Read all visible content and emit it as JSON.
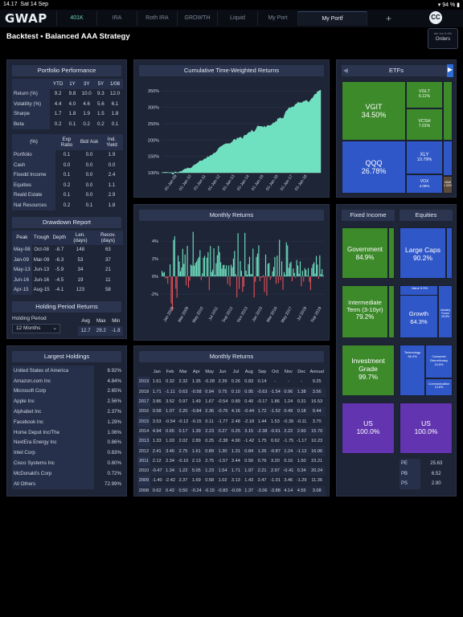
{
  "status": {
    "time": "14.17",
    "date": "Sat 14 Sep",
    "battery": "94 %"
  },
  "app": {
    "logo": "GWAP",
    "avatar": "CC"
  },
  "tabs": [
    {
      "label": "401K"
    },
    {
      "label": "IRA"
    },
    {
      "label": "Roth IRA"
    },
    {
      "label": "GROWTH"
    },
    {
      "label": "Liquid"
    },
    {
      "label": "My Port"
    },
    {
      "label": "My Portf"
    },
    {
      "label": "+"
    }
  ],
  "header": {
    "title": "Backtest  •  Balanced AAA Strategy",
    "orders_small": "etc\n1m\n0.4%",
    "orders_label": "Orders"
  },
  "perf": {
    "title": "Portfolio Performance",
    "cols": [
      "YTD",
      "1Y",
      "3Y",
      "5Y",
      "1/08"
    ],
    "rows": [
      {
        "label": "Return (%)",
        "v": [
          "9.2",
          "9.8",
          "10.0",
          "9.3",
          "12.0"
        ]
      },
      {
        "label": "Volatility (%)",
        "v": [
          "4.4",
          "4.0",
          "4.6",
          "5.6",
          "6.1"
        ]
      },
      {
        "label": "Sharpe",
        "v": [
          "1.7",
          "1.8",
          "1.9",
          "1.5",
          "1.8"
        ]
      },
      {
        "label": "Beta",
        "v": [
          "0.2",
          "0.1",
          "0.2",
          "0.2",
          "0.1"
        ]
      }
    ]
  },
  "alloc": {
    "cols": [
      "(%)",
      "Exp Ratio",
      "Bid/ Ask",
      "Ind. Yield"
    ],
    "rows": [
      {
        "label": "Portfolio",
        "v": [
          "0.1",
          "0.0",
          "1.9"
        ]
      },
      {
        "label": "Cash",
        "v": [
          "0.0",
          "0.0",
          "0.0"
        ]
      },
      {
        "label": "Fixedd Income",
        "v": [
          "0.1",
          "0.0",
          "2.4"
        ]
      },
      {
        "label": "Equities",
        "v": [
          "0.2",
          "0.0",
          "1.1"
        ]
      },
      {
        "label": "Reald Estate",
        "v": [
          "0.1",
          "0.0",
          "2.9"
        ]
      },
      {
        "label": "Nat Resources",
        "v": [
          "0.2",
          "0.1",
          "1.8"
        ]
      }
    ]
  },
  "drawdown": {
    "title": "Drawdown Report",
    "cols": [
      "Peak",
      "Trough",
      "Depth",
      "Len. (days)",
      "Recov. (days)"
    ],
    "rows": [
      [
        "May-08",
        "Oct-08",
        "-8.7",
        "148",
        "63"
      ],
      [
        "Jan-09",
        "Mar-09",
        "-6.3",
        "53",
        "37"
      ],
      [
        "May-13",
        "Jun-13",
        "-5.9",
        "34",
        "21"
      ],
      [
        "Jun-16",
        "Jun-16",
        "-4.5",
        "19",
        "11"
      ],
      [
        "Apr-15",
        "Aug-15",
        "-4.1",
        "123",
        "58"
      ]
    ]
  },
  "holding": {
    "title": "Holding Period Returns",
    "label": "Holding Period",
    "select": "12 Months",
    "cols": [
      "Avg",
      "Max",
      "Min"
    ],
    "vals": [
      "12.7",
      "29.2",
      "-1.8"
    ]
  },
  "largest": {
    "title": "Largest Holdings",
    "rows": [
      [
        "United States of America",
        "8.92%"
      ],
      [
        "Amazon.com Inc",
        "4.84%"
      ],
      [
        "Microsoft Corp",
        "2.65%"
      ],
      [
        "Apple Inc",
        "2.56%"
      ],
      [
        "Alphabet Inc",
        "2.37%"
      ],
      [
        "Facebook Inc",
        "1.29%"
      ],
      [
        "Home Depot Inc/The",
        "1.06%"
      ],
      [
        "NextEra Energy Inc",
        "0.86%"
      ],
      [
        "Intel Corp",
        "0.83%"
      ],
      [
        "Cisco Systems Inc",
        "0.80%"
      ],
      [
        "McDonald's Corp",
        "0.72%"
      ],
      [
        "All Others",
        "72.99%"
      ]
    ]
  },
  "cum": {
    "title": "Cumulative Time-Weighted Returns",
    "yticks": [
      "350%",
      "300%",
      "250%",
      "200%",
      "150%",
      "100%"
    ],
    "xticks": [
      "01-Jan-09",
      "01-Jan-10",
      "01-Jan-11",
      "01-Jan-12",
      "01-Jan-13",
      "01-Jan-14",
      "01-Jan-15",
      "01-Jan-16",
      "01-Jan-17",
      "01-Jan-18"
    ]
  },
  "monthlyChart": {
    "title": "Monthly Returns",
    "yticks": [
      "4%",
      "2%",
      "0%",
      "-2%"
    ],
    "xticks": [
      "Jan 2008",
      "Mar 2009",
      "May 2010",
      "Jul 2011",
      "Sep 2012",
      "Nov 2013",
      "Jan 2015",
      "Mar 2016",
      "May 2017",
      "Jul 2018",
      "Sep 2019"
    ]
  },
  "monthlyTable": {
    "title": "Monthly Returns",
    "cols": [
      "Jan",
      "Feb",
      "Mar",
      "Apr",
      "May",
      "Jun",
      "Jul",
      "Aug",
      "Sep",
      "Oct",
      "Nov",
      "Dec",
      "Annual"
    ],
    "rows": [
      [
        "2019",
        "1.61",
        "0.32",
        "2.32",
        "1.35",
        "-0.28",
        "2.39",
        "0.26",
        "0.83",
        "0.14",
        "-",
        "-",
        "-",
        "9.25"
      ],
      [
        "2018",
        "1.71",
        "-1.11",
        "0.63",
        "-0.58",
        "0.94",
        "0.75",
        "0.10",
        "0.95",
        "-0.63",
        "-1.54",
        "0.96",
        "1.38",
        "3.56"
      ],
      [
        "2017",
        "3.86",
        "3.52",
        "0.97",
        "1.49",
        "1.67",
        "-0.54",
        "0.89",
        "0.40",
        "-0.17",
        "1.86",
        "1.24",
        "0.31",
        "16.53"
      ],
      [
        "2016",
        "0.58",
        "1.07",
        "2.20",
        "-0.84",
        "2.36",
        "-0.76",
        "4.16",
        "-0.44",
        "1.72",
        "-1.52",
        "0.49",
        "0.18",
        "9.44"
      ],
      [
        "2015",
        "3.53",
        "-0.54",
        "-0.12",
        "-0.15",
        "0.11",
        "-1.77",
        "2.48",
        "-2.18",
        "1.44",
        "1.53",
        "-0.39",
        "-0.11",
        "3.70"
      ],
      [
        "2014",
        "4.94",
        "0.65",
        "0.17",
        "1.39",
        "2.23",
        "0.27",
        "0.25",
        "3.15",
        "-2.38",
        "-0.61",
        "2.22",
        "2.60",
        "15.70"
      ],
      [
        "2013",
        "1.33",
        "1.03",
        "2.02",
        "2.89",
        "0.25",
        "-2.38",
        "4.90",
        "-1.42",
        "1.75",
        "0.62",
        "-1.75",
        "-1.17",
        "10.23"
      ],
      [
        "2012",
        "2.41",
        "3.46",
        "2.75",
        "1.61",
        "0.89",
        "1.30",
        "1.31",
        "0.84",
        "1.26",
        "-0.87",
        "1.24",
        "-1.12",
        "16.06"
      ],
      [
        "2011",
        "2.12",
        "2.34",
        "-0.10",
        "2.13",
        "2.75",
        "-1.57",
        "3.44",
        "0.50",
        "0.76",
        "3.20",
        "0.16",
        "1.50",
        "23.21"
      ],
      [
        "2010",
        "-0.47",
        "1.34",
        "1.22",
        "5.05",
        "1.23",
        "1.54",
        "1.71",
        "1.97",
        "2.21",
        "2.97",
        "-0.41",
        "0.34",
        "20.24"
      ],
      [
        "2009",
        "-1.40",
        "-2.42",
        "2.37",
        "1.69",
        "0.58",
        "1.02",
        "3.13",
        "1.43",
        "2.47",
        "-1.01",
        "3.46",
        "-1.29",
        "11.36"
      ],
      [
        "2008",
        "0.62",
        "0.42",
        "0.50",
        "-0.24",
        "-0.15",
        "-0.83",
        "-0.09",
        "1.37",
        "-3.06",
        "-3.88",
        "4.14",
        "4.55",
        "3.08"
      ]
    ]
  },
  "etfs": {
    "title": "ETFs",
    "items": [
      {
        "label": "VGIT",
        "pct": "34.50%"
      },
      {
        "label": "VGLT",
        "pct": "6.11%"
      },
      {
        "label": "VCSH",
        "pct": "7.01%"
      },
      {
        "label": "QQQ",
        "pct": "26.78%"
      },
      {
        "label": "XLY",
        "pct": "10.79%"
      },
      {
        "label": "VOX",
        "pct": "4.09%"
      },
      {
        "label": "VAW",
        "pct": "1.93%"
      }
    ]
  },
  "fixed": {
    "title": "Fixed Income",
    "items": [
      {
        "label": "Government",
        "pct": "84.9%"
      },
      {
        "label": "Intermediate Term (3-10yr)",
        "pct": "79.2%"
      },
      {
        "label": "Investment Grade",
        "pct": "99.7%"
      },
      {
        "label": "US",
        "pct": "100.0%"
      }
    ]
  },
  "equities": {
    "title": "Equities",
    "items": [
      {
        "label": "Large Caps",
        "pct": "90.2%"
      },
      {
        "label": "Growth",
        "pct": "64.3%"
      },
      {
        "label": "Value",
        "pct": "9.9%"
      },
      {
        "label": "Industry Focus",
        "pct": "25.8%"
      },
      {
        "label": "Technology",
        "pct": "38.4%"
      },
      {
        "label": "Consumer Discretionary",
        "pct": "24.5%"
      },
      {
        "label": "Communication",
        "pct": "13.8%"
      },
      {
        "label": "US",
        "pct": "100.0%"
      }
    ],
    "ratios": [
      [
        "PE",
        "25.63"
      ],
      [
        "PB",
        "6.52"
      ],
      [
        "PS",
        "2.90"
      ]
    ]
  },
  "colors": {
    "accent": "#6fe0c0",
    "green": "#3f8c2a",
    "blue": "#2f56c9",
    "purple": "#6133b0",
    "red": "#e0505a"
  }
}
